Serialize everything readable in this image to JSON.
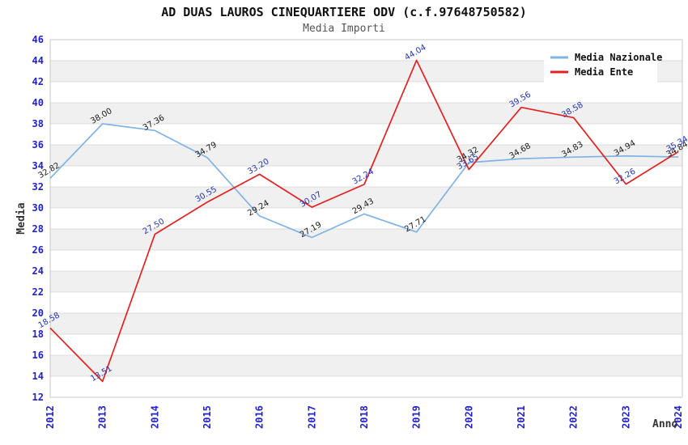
{
  "header": {
    "title": "AD DUAS LAUROS CINEQUARTIERE ODV (c.f.97648750582)",
    "subtitle": "Media Importi"
  },
  "chart_data": {
    "type": "line",
    "x": [
      "2012",
      "2013",
      "2014",
      "2015",
      "2016",
      "2017",
      "2018",
      "2019",
      "2020",
      "2021",
      "2022",
      "2023",
      "2024"
    ],
    "xlabel": "Anno",
    "ylabel": "Media",
    "ylim": [
      12,
      46
    ],
    "ytick_step": 2,
    "grid": "horizontal-stripes",
    "legend_position": "top-right",
    "series": [
      {
        "name": "Media Nazionale",
        "color": "#7fb3e6",
        "label_color": "#1a1a1a",
        "values": [
          32.82,
          38.0,
          37.36,
          34.79,
          29.24,
          27.19,
          29.43,
          27.71,
          34.32,
          34.68,
          34.83,
          34.94,
          34.84
        ]
      },
      {
        "name": "Media Ente",
        "color": "#e62020",
        "label_color": "#2233bb",
        "values": [
          18.58,
          13.51,
          27.5,
          30.55,
          33.2,
          30.07,
          32.24,
          44.04,
          33.65,
          39.56,
          38.58,
          32.26,
          35.34
        ]
      }
    ],
    "axis_tick_color": "#2222cc",
    "axis_title_color": "#333333",
    "colors": {
      "stripe": "#f0f0f0",
      "gridline": "#dcdcdc",
      "plot_border": "#c8c8c8",
      "legend_bg": "#ffffff",
      "legend_text": "#111111"
    }
  }
}
